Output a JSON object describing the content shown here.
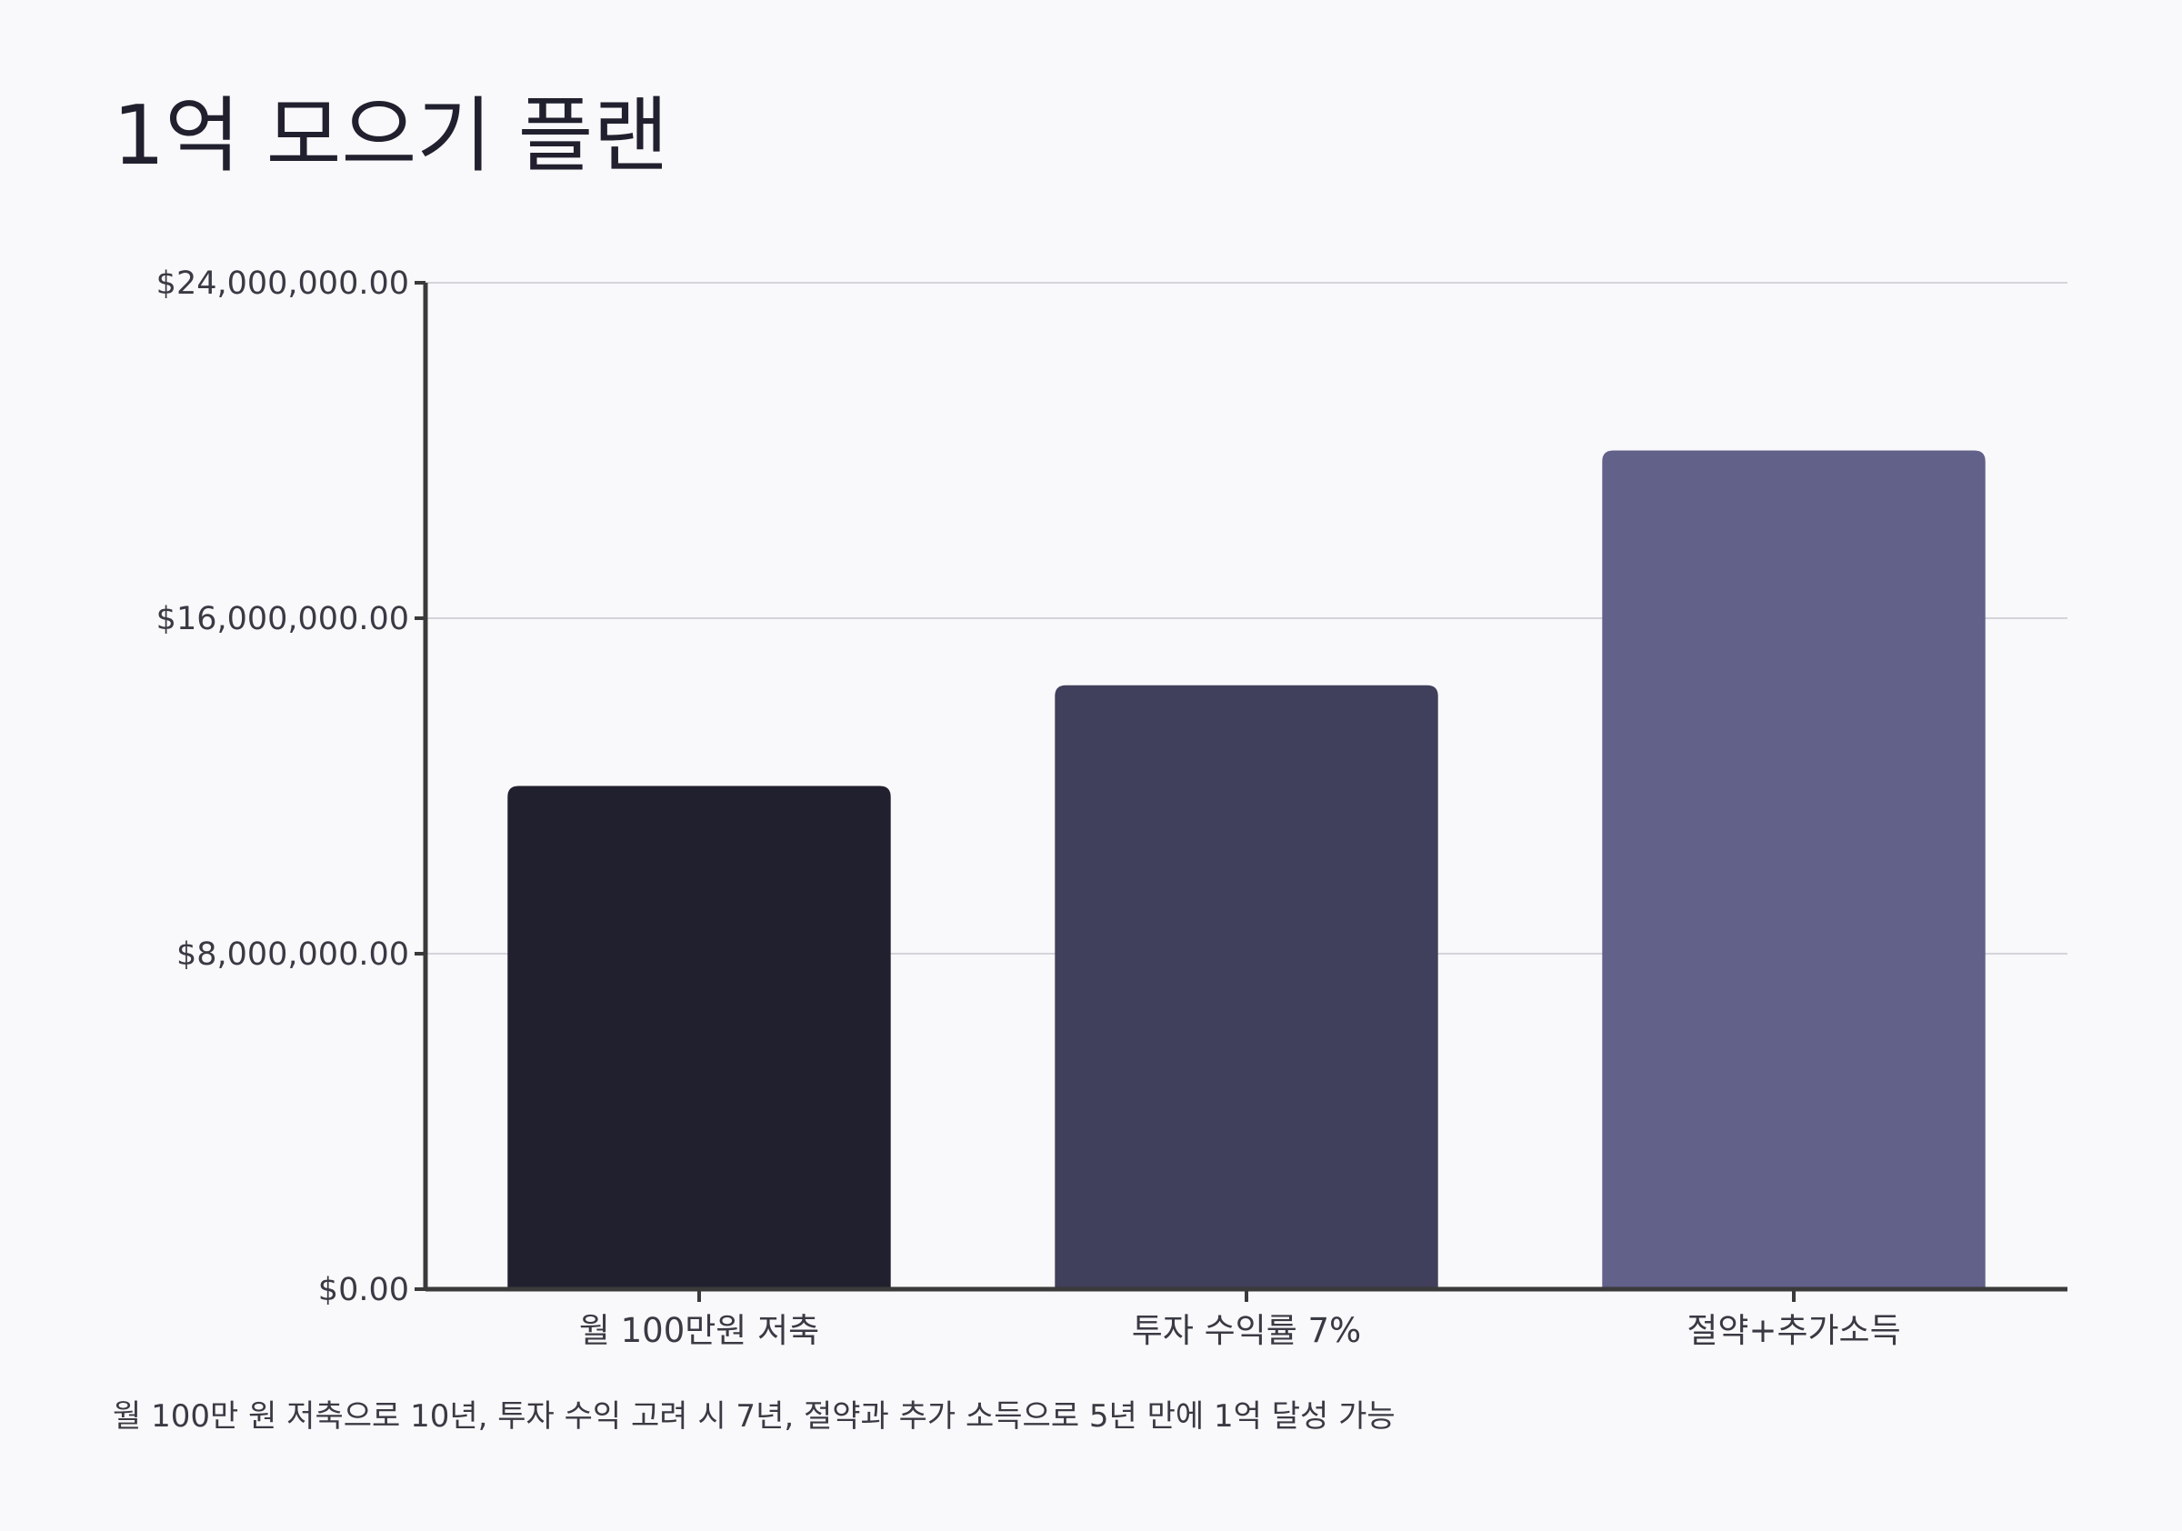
{
  "chart_data": {
    "type": "bar",
    "title": "1억 모으기 플랜",
    "caption": "월 100만 원 저축으로 10년, 투자 수익 고려 시 7년, 절약과 추가 소득으로 5년 만에 1억 달성 가능",
    "categories": [
      "월 100만원 저축",
      "투자 수익률 7%",
      "절약+추가소득"
    ],
    "values": [
      12000000,
      14400000,
      20000000
    ],
    "ylim": [
      0,
      24000000
    ],
    "yticks": [
      0,
      8000000,
      16000000,
      24000000
    ],
    "ytick_labels": [
      "$0.00",
      "$8,000,000.00",
      "$16,000,000.00",
      "$24,000,000.00"
    ],
    "xlabel": "",
    "ylabel": "",
    "grid": true,
    "legend": false,
    "colors": [
      "#20202e",
      "#40405c",
      "#616189"
    ]
  }
}
